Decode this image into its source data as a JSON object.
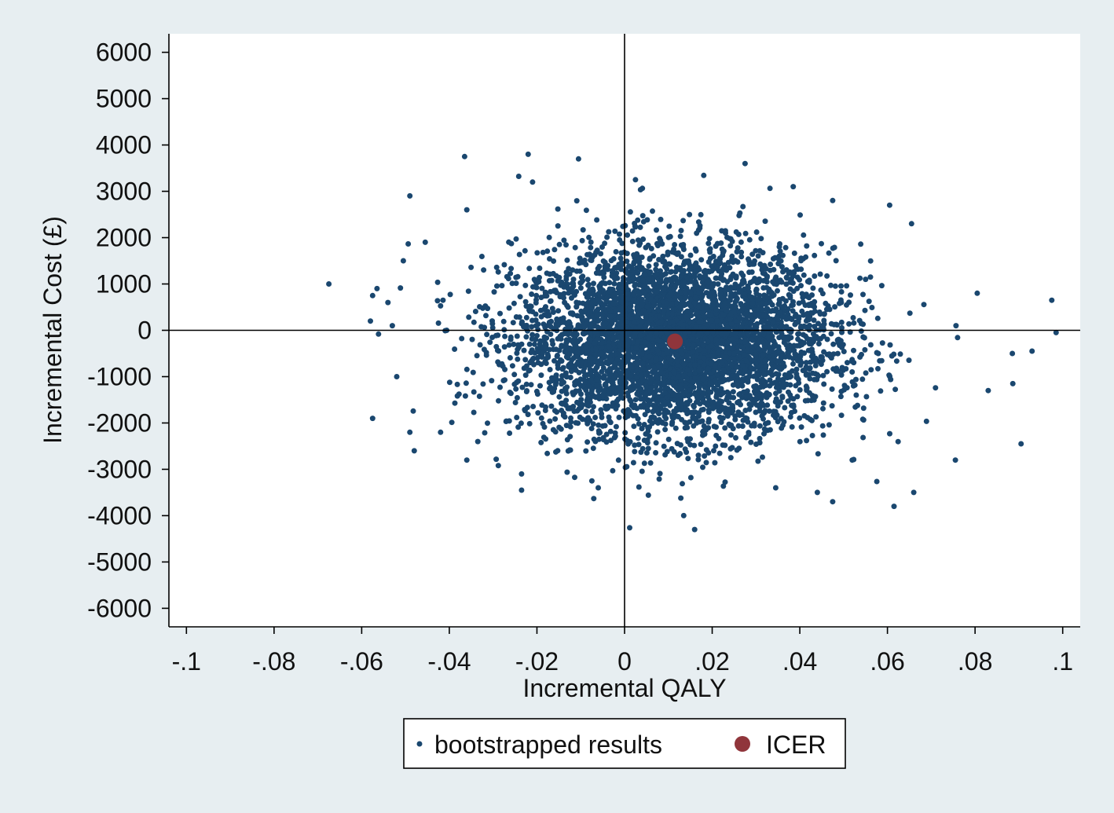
{
  "chart_data": {
    "type": "scatter",
    "title": "",
    "xlabel": "Incremental QALY",
    "ylabel": "Incremental Cost (£)",
    "xlim": [
      -0.104,
      0.104
    ],
    "ylim": [
      -6400,
      6400
    ],
    "x_ticks": [
      -0.1,
      -0.08,
      -0.06,
      -0.04,
      -0.02,
      0,
      0.02,
      0.04,
      0.06,
      0.08,
      0.1
    ],
    "x_tick_labels": [
      "-.1",
      "-.08",
      "-.06",
      "-.04",
      "-.02",
      "0",
      ".02",
      ".04",
      ".06",
      ".08",
      ".1"
    ],
    "y_ticks": [
      6000,
      5000,
      4000,
      3000,
      2000,
      1000,
      0,
      -1000,
      -2000,
      -3000,
      -4000,
      -5000,
      -6000
    ],
    "y_tick_labels": [
      "6000",
      "5000",
      "4000",
      "3000",
      "2000",
      "1000",
      "0",
      "-1000",
      "-2000",
      "-3000",
      "-4000",
      "-5000",
      "-6000"
    ],
    "reference_lines": {
      "x": 0,
      "y": 0
    },
    "grid": false,
    "legend_position": "bottom",
    "legend": [
      "bootstrapped results",
      "ICER"
    ],
    "series": [
      {
        "name": "bootstrapped results",
        "color": "#1a476f",
        "distribution": {
          "mean_x": 0.0115,
          "sd_x": 0.018,
          "mean_y": -240,
          "sd_y": 1000,
          "n": 5000
        },
        "points": [
          [
            -0.0675,
            1000
          ],
          [
            -0.058,
            200
          ],
          [
            -0.0575,
            750
          ],
          [
            -0.0575,
            -1900
          ],
          [
            -0.0565,
            900
          ],
          [
            -0.054,
            600
          ],
          [
            -0.053,
            100
          ],
          [
            -0.052,
            -1000
          ],
          [
            -0.0505,
            1500
          ],
          [
            -0.049,
            2900
          ],
          [
            -0.049,
            -2200
          ],
          [
            -0.048,
            -2600
          ],
          [
            -0.0455,
            1900
          ],
          [
            -0.042,
            -2200
          ],
          [
            -0.0365,
            3750
          ],
          [
            -0.036,
            2600
          ],
          [
            -0.036,
            -2800
          ],
          [
            -0.0335,
            -2400
          ],
          [
            -0.0235,
            -3100
          ],
          [
            -0.0235,
            -3450
          ],
          [
            -0.022,
            3800
          ],
          [
            -0.021,
            3200
          ],
          [
            -0.0105,
            3700
          ],
          [
            -0.006,
            -3400
          ],
          [
            0.0025,
            3250
          ],
          [
            0.0135,
            -4000
          ],
          [
            0.016,
            -4300
          ],
          [
            0.0275,
            3600
          ],
          [
            0.0345,
            -3400
          ],
          [
            0.0385,
            3100
          ],
          [
            0.044,
            -3500
          ],
          [
            0.0475,
            -3700
          ],
          [
            0.0475,
            2800
          ],
          [
            0.0605,
            2700
          ],
          [
            0.0615,
            -3800
          ],
          [
            0.0655,
            2300
          ],
          [
            0.066,
            -3500
          ],
          [
            0.0755,
            -2800
          ],
          [
            0.0805,
            800
          ],
          [
            0.083,
            -1300
          ],
          [
            0.0885,
            -500
          ],
          [
            0.0905,
            -2450
          ],
          [
            0.093,
            -450
          ],
          [
            0.0975,
            650
          ],
          [
            0.0985,
            -50
          ]
        ]
      },
      {
        "name": "ICER",
        "color": "#90353b",
        "points": [
          [
            0.0115,
            -240
          ]
        ]
      }
    ]
  }
}
